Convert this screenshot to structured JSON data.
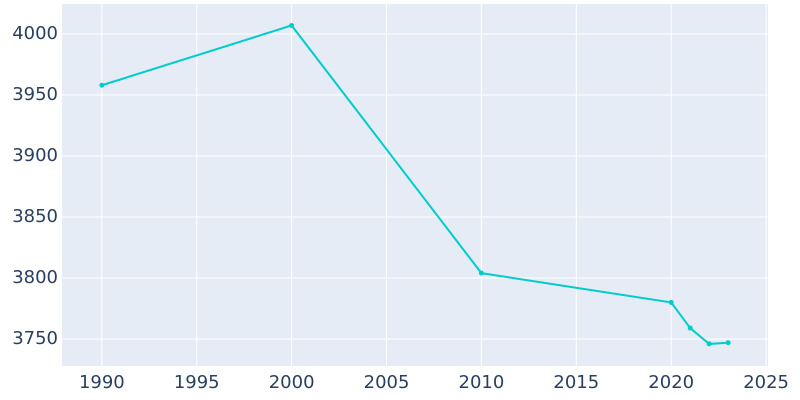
{
  "chart_data": {
    "type": "line",
    "x": [
      1990,
      2000,
      2010,
      2020,
      2021,
      2022,
      2023
    ],
    "series": [
      {
        "color": "#00cccc",
        "values": [
          3958,
          4007,
          3804,
          3780,
          3759,
          3746,
          3747
        ]
      }
    ],
    "xlim": [
      1987.9,
      2025.1
    ],
    "xticks": [
      1990,
      1995,
      2000,
      2005,
      2010,
      2015,
      2020,
      2025
    ],
    "ylim": [
      3727.9,
      4024.6
    ],
    "yticks": [
      3750,
      3800,
      3850,
      3900,
      3950,
      4000
    ],
    "grid": true,
    "background": "#e5ecf6"
  }
}
